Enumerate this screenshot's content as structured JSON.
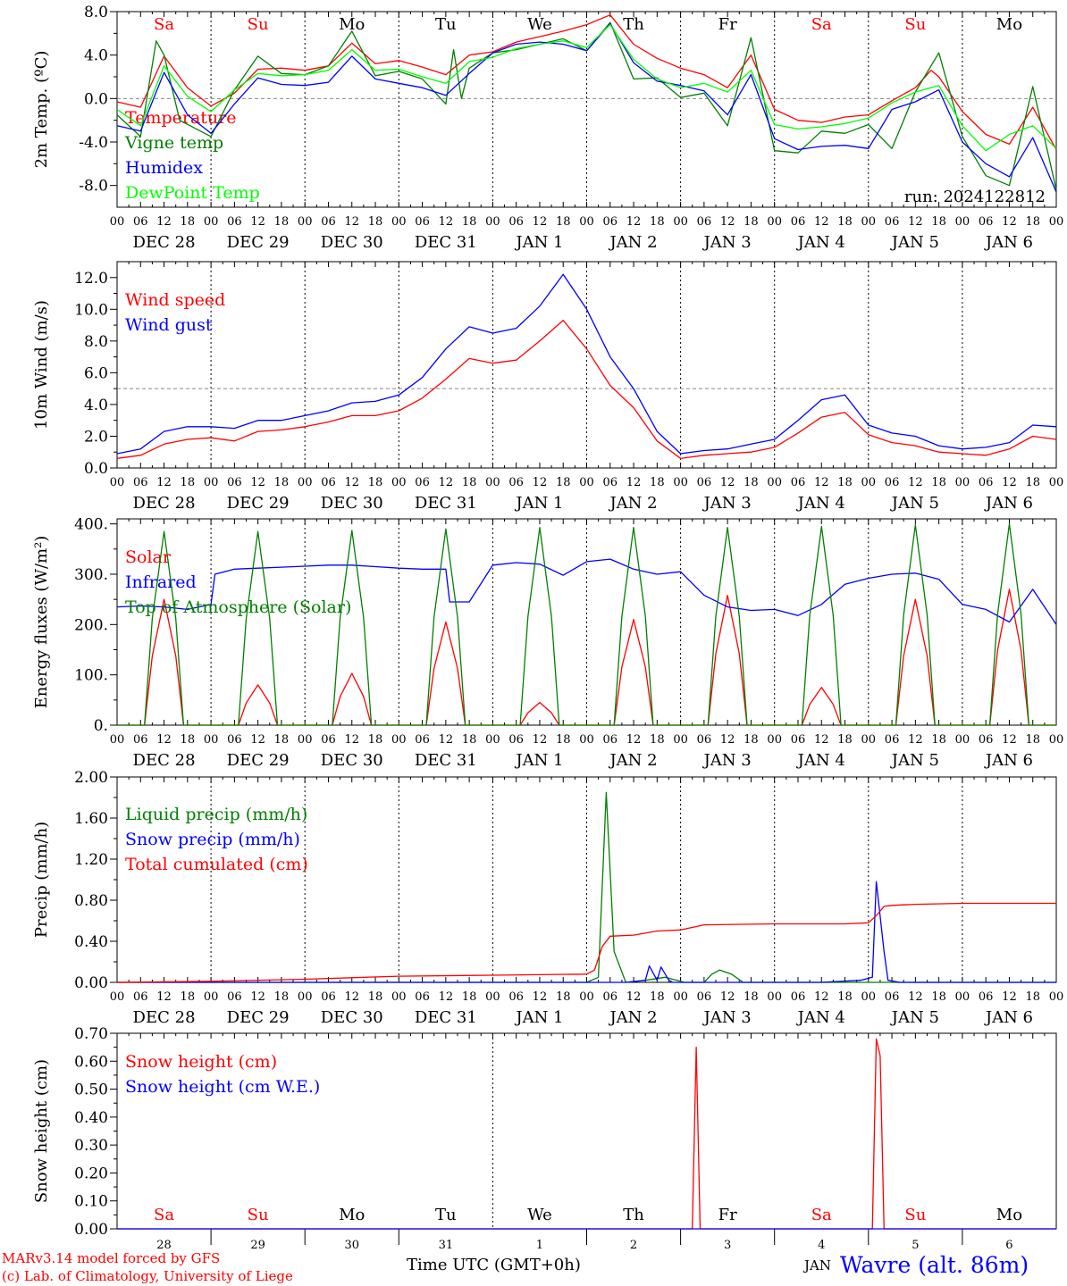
{
  "colors": {
    "red": "#ff0000",
    "green": "#008000",
    "blue": "#0000ff",
    "lime": "#00ff00",
    "black": "#000000",
    "gray": "#888888"
  },
  "time_axis": {
    "hour_labels": [
      "00",
      "06",
      "12",
      "18"
    ],
    "end_label": "00",
    "date_labels": [
      "DEC 28",
      "DEC 29",
      "DEC 30",
      "DEC 31",
      "JAN  1",
      "JAN  2",
      "JAN  3",
      "JAN  4",
      "JAN  5",
      "JAN  6"
    ],
    "weekdays": [
      "Sa",
      "Su",
      "Mo",
      "Tu",
      "We",
      "Th",
      "Fr",
      "Sa",
      "Su",
      "Mo"
    ],
    "weekday_colors": [
      "red",
      "red",
      "black",
      "black",
      "black",
      "black",
      "black",
      "red",
      "red",
      "black"
    ],
    "day_numbers": [
      "28",
      "29",
      "30",
      "31",
      "1",
      "2",
      "3",
      "4",
      "5",
      "6"
    ]
  },
  "chart_data": [
    {
      "type": "line",
      "ylabel": "2m Temp. (ºC)",
      "ylim": [
        -10,
        8
      ],
      "yticks": [
        "8.0",
        "4.0",
        "0.0",
        "-4.0",
        "-8.0"
      ],
      "ytick_values": [
        8,
        4,
        0,
        -4,
        -8
      ],
      "x_unit": "hours since DEC 28 00 UTC",
      "ref_line": 0,
      "annotation": "run: 2024122812",
      "series": [
        {
          "name": "Temperature",
          "color": "red",
          "x": [
            0,
            6,
            12,
            18,
            24,
            30,
            36,
            42,
            48,
            54,
            60,
            66,
            72,
            78,
            84,
            90,
            96,
            102,
            108,
            114,
            120,
            126,
            132,
            138,
            144,
            150,
            156,
            162,
            168,
            174,
            180,
            186,
            192,
            198,
            204,
            208,
            210,
            216,
            222,
            228,
            234,
            240
          ],
          "y": [
            -0.3,
            -0.8,
            3.9,
            1.0,
            -0.7,
            0.5,
            2.7,
            2.8,
            2.6,
            3.0,
            5.1,
            3.2,
            3.5,
            2.9,
            2.2,
            4.0,
            4.3,
            5.2,
            5.7,
            6.2,
            6.8,
            7.7,
            5.0,
            3.7,
            2.8,
            2.2,
            1.0,
            4.0,
            -1.0,
            -2.0,
            -2.2,
            -1.7,
            -1.5,
            -0.2,
            1.0,
            2.6,
            2.0,
            -1.2,
            -3.3,
            -4.2,
            -0.8,
            -4.7
          ]
        },
        {
          "name": "Vigne temp",
          "color": "green",
          "x": [
            0,
            6,
            10,
            12,
            16,
            24,
            30,
            36,
            42,
            48,
            54,
            60,
            66,
            72,
            78,
            84,
            86,
            88,
            90,
            96,
            102,
            108,
            114,
            120,
            126,
            132,
            138,
            144,
            150,
            156,
            162,
            168,
            174,
            180,
            186,
            192,
            198,
            204,
            210,
            216,
            222,
            228,
            234,
            240
          ],
          "y": [
            -1.5,
            -3.5,
            5.3,
            4.0,
            -2.0,
            -3.5,
            0.8,
            3.9,
            2.3,
            2.2,
            3.0,
            6.2,
            2.1,
            2.5,
            1.8,
            -0.5,
            4.5,
            0.0,
            2.8,
            4.2,
            4.5,
            5.0,
            5.5,
            4.4,
            7.0,
            1.8,
            1.9,
            0.1,
            0.5,
            -2.5,
            5.6,
            -4.8,
            -5.0,
            -3.0,
            -3.2,
            -2.4,
            -4.6,
            0.6,
            4.2,
            -3.5,
            -7.1,
            -8.0,
            1.1,
            -8.4
          ]
        },
        {
          "name": "Humidex",
          "color": "blue",
          "x": [
            0,
            6,
            12,
            18,
            24,
            30,
            36,
            42,
            48,
            54,
            60,
            66,
            72,
            78,
            84,
            90,
            96,
            102,
            108,
            114,
            120,
            126,
            132,
            138,
            144,
            150,
            156,
            162,
            168,
            174,
            180,
            186,
            192,
            198,
            204,
            210,
            216,
            222,
            228,
            234,
            240
          ],
          "y": [
            -2.5,
            -3.0,
            2.4,
            -1.5,
            -3.2,
            -0.5,
            1.9,
            1.3,
            1.2,
            1.5,
            3.9,
            1.8,
            1.4,
            1.0,
            0.3,
            2.3,
            4.2,
            5.0,
            5.2,
            5.0,
            4.4,
            6.9,
            3.3,
            1.6,
            1.2,
            0.7,
            -1.5,
            2.2,
            -3.7,
            -4.7,
            -4.4,
            -4.3,
            -4.6,
            -1.0,
            -0.3,
            0.8,
            -4.0,
            -6.0,
            -7.2,
            -3.6,
            -8.6
          ]
        },
        {
          "name": "DewPoint Temp",
          "color": "lime",
          "x": [
            0,
            6,
            12,
            18,
            24,
            30,
            36,
            42,
            48,
            54,
            60,
            66,
            72,
            78,
            84,
            90,
            96,
            102,
            108,
            114,
            120,
            126,
            132,
            138,
            144,
            150,
            156,
            162,
            168,
            174,
            180,
            186,
            192,
            198,
            204,
            210,
            216,
            222,
            228,
            234,
            240
          ],
          "y": [
            -1.0,
            -2.5,
            3.0,
            0.2,
            -1.2,
            0.8,
            2.3,
            2.1,
            2.2,
            2.6,
            4.5,
            2.6,
            2.7,
            2.0,
            1.4,
            3.4,
            3.8,
            4.6,
            5.0,
            5.3,
            4.7,
            6.8,
            3.6,
            1.8,
            1.0,
            1.4,
            0.6,
            2.6,
            -2.4,
            -2.8,
            -2.6,
            -2.3,
            -1.8,
            -0.4,
            0.6,
            1.2,
            -2.5,
            -4.8,
            -3.3,
            -2.5,
            -4.6
          ]
        }
      ]
    },
    {
      "type": "line",
      "ylabel": "10m Wind (m/s)",
      "ylim": [
        0,
        13
      ],
      "yticks": [
        "12.0",
        "10.0",
        "8.0",
        "6.0",
        "4.0",
        "2.0",
        "0.0"
      ],
      "ytick_values": [
        12,
        10,
        8,
        6,
        4,
        2,
        0
      ],
      "x_unit": "hours since DEC 28 00 UTC",
      "ref_line": 5,
      "series": [
        {
          "name": "Wind speed",
          "color": "red",
          "x": [
            0,
            6,
            12,
            18,
            24,
            30,
            36,
            42,
            48,
            54,
            60,
            66,
            72,
            78,
            84,
            90,
            96,
            102,
            108,
            114,
            120,
            126,
            132,
            138,
            144,
            150,
            156,
            162,
            168,
            174,
            180,
            186,
            192,
            198,
            204,
            210,
            216,
            222,
            228,
            234,
            240
          ],
          "y": [
            0.6,
            0.8,
            1.5,
            1.8,
            1.9,
            1.7,
            2.3,
            2.4,
            2.6,
            2.9,
            3.3,
            3.3,
            3.6,
            4.4,
            5.6,
            6.9,
            6.6,
            6.8,
            8.0,
            9.3,
            7.5,
            5.2,
            3.8,
            1.7,
            0.6,
            0.8,
            0.9,
            1.0,
            1.3,
            2.2,
            3.2,
            3.5,
            2.1,
            1.6,
            1.4,
            1.0,
            0.9,
            0.8,
            1.2,
            2.0,
            1.8
          ]
        },
        {
          "name": "Wind gust",
          "color": "blue",
          "x": [
            0,
            6,
            12,
            18,
            24,
            30,
            36,
            42,
            48,
            54,
            60,
            66,
            72,
            78,
            84,
            90,
            96,
            102,
            108,
            114,
            120,
            126,
            132,
            138,
            144,
            150,
            156,
            162,
            168,
            174,
            180,
            186,
            192,
            198,
            204,
            210,
            216,
            222,
            228,
            234,
            240
          ],
          "y": [
            0.9,
            1.2,
            2.3,
            2.6,
            2.6,
            2.5,
            3.0,
            3.0,
            3.3,
            3.6,
            4.1,
            4.2,
            4.6,
            5.7,
            7.5,
            8.9,
            8.5,
            8.8,
            10.2,
            12.2,
            10.0,
            7.0,
            5.0,
            2.3,
            0.9,
            1.1,
            1.2,
            1.5,
            1.8,
            3.0,
            4.3,
            4.6,
            2.7,
            2.2,
            2.0,
            1.4,
            1.2,
            1.3,
            1.6,
            2.7,
            2.6
          ]
        }
      ]
    },
    {
      "type": "line",
      "ylabel": "Energy fluxes (W/m²)",
      "ylim": [
        0,
        410
      ],
      "yticks": [
        "400.",
        "300.",
        "200.",
        "100.",
        "0."
      ],
      "ytick_values": [
        400,
        300,
        200,
        100,
        0
      ],
      "x_unit": "hours since DEC 28 00 UTC",
      "series": [
        {
          "name": "Solar",
          "color": "red",
          "peak_hour": 12,
          "peaks": [
            250,
            80,
            103,
            205,
            45,
            210,
            258,
            75,
            250,
            270
          ]
        },
        {
          "name": "Infrared",
          "color": "blue",
          "x": [
            0,
            6,
            12,
            18,
            24,
            25,
            30,
            36,
            42,
            48,
            54,
            60,
            66,
            72,
            78,
            84,
            85,
            90,
            96,
            102,
            108,
            114,
            120,
            126,
            132,
            138,
            144,
            150,
            156,
            162,
            168,
            174,
            180,
            186,
            192,
            198,
            204,
            210,
            216,
            222,
            228,
            234,
            240
          ],
          "y": [
            235,
            237,
            235,
            230,
            240,
            300,
            310,
            312,
            314,
            316,
            318,
            318,
            315,
            312,
            310,
            310,
            245,
            245,
            318,
            323,
            320,
            298,
            325,
            330,
            310,
            300,
            305,
            258,
            235,
            228,
            230,
            218,
            240,
            280,
            292,
            300,
            302,
            290,
            240,
            230,
            205,
            270,
            200
          ]
        },
        {
          "name": "Top of Atmosphere (Solar)",
          "color": "green",
          "peak_hour": 12,
          "peaks": [
            385,
            385,
            387,
            390,
            393,
            393,
            393,
            395,
            398,
            400
          ]
        }
      ]
    },
    {
      "type": "line",
      "ylabel": "Precip (mm/h)",
      "ylim": [
        0,
        2
      ],
      "yticks": [
        "2.00",
        "1.60",
        "1.20",
        "0.80",
        "0.40",
        "0.00"
      ],
      "ytick_values": [
        2.0,
        1.6,
        1.2,
        0.8,
        0.4,
        0.0
      ],
      "x_unit": "hours since DEC 28 00 UTC",
      "series": [
        {
          "name": "Liquid precip (mm/h)",
          "color": "green",
          "x": [
            0,
            120,
            123,
            125,
            127,
            130,
            135,
            140,
            145,
            150,
            152,
            154,
            157,
            160,
            165,
            240
          ],
          "y": [
            0,
            0,
            0.05,
            1.85,
            0.3,
            0.0,
            0.02,
            0.05,
            0.0,
            0.0,
            0.08,
            0.12,
            0.08,
            0.0,
            0.0,
            0.0
          ]
        },
        {
          "name": "Snow precip (mm/h)",
          "color": "blue",
          "x": [
            0,
            130,
            135,
            136,
            138,
            139,
            141,
            142,
            150,
            180,
            190,
            193,
            194,
            196,
            197,
            200,
            240
          ],
          "y": [
            0,
            0,
            0.02,
            0.16,
            0.02,
            0.15,
            0.02,
            0,
            0,
            0,
            0.02,
            0.05,
            0.98,
            0.3,
            0.02,
            0,
            0
          ]
        },
        {
          "name": "Total cumulated (cm)",
          "color": "red",
          "x": [
            0,
            24,
            48,
            72,
            96,
            120,
            122,
            124,
            126,
            132,
            138,
            144,
            150,
            168,
            186,
            192,
            194,
            196,
            198,
            204,
            216,
            240
          ],
          "y": [
            0,
            0.01,
            0.03,
            0.06,
            0.07,
            0.08,
            0.12,
            0.35,
            0.45,
            0.46,
            0.5,
            0.51,
            0.56,
            0.57,
            0.57,
            0.58,
            0.65,
            0.74,
            0.75,
            0.76,
            0.77,
            0.77
          ]
        }
      ]
    },
    {
      "type": "line",
      "ylabel": "Snow height (cm)",
      "ylim": [
        0,
        0.7
      ],
      "yticks": [
        "0.70",
        "0.60",
        "0.50",
        "0.40",
        "0.30",
        "0.20",
        "0.10",
        "0.00"
      ],
      "ytick_values": [
        0.7,
        0.6,
        0.5,
        0.4,
        0.3,
        0.2,
        0.1,
        0.0
      ],
      "x_unit": "hours since DEC 28 00 UTC",
      "series": [
        {
          "name": "Snow height (cm)",
          "color": "red",
          "x": [
            0,
            147,
            148,
            149,
            193,
            194,
            195,
            196,
            240
          ],
          "y": [
            0,
            0,
            0.65,
            0,
            0,
            0.68,
            0.62,
            0,
            0
          ]
        },
        {
          "name": "Snow height (cm W.E.)",
          "color": "blue",
          "x": [
            0,
            240
          ],
          "y": [
            0,
            0
          ]
        }
      ]
    }
  ],
  "footer": {
    "model": "MARv3.14 model forced by GFS",
    "lab": "(c) Lab. of Climatology, University of Liege",
    "xaxis_title": "Time UTC (GMT+0h)",
    "month": "JAN",
    "station": "Wavre (alt. 86m)"
  }
}
